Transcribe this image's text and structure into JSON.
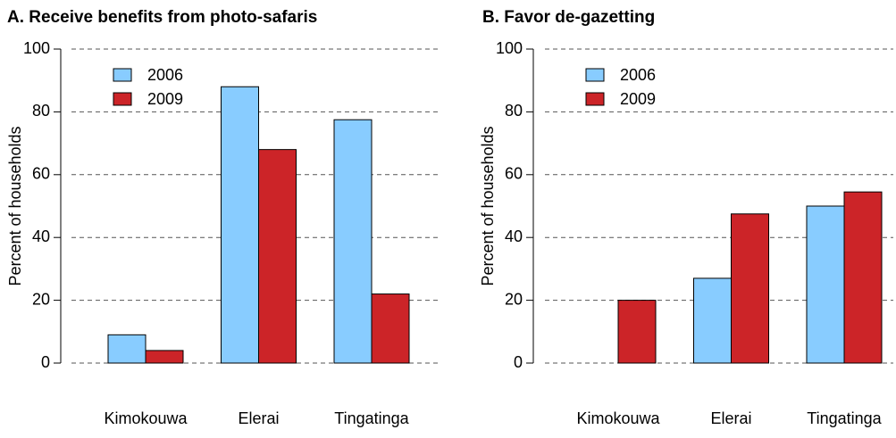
{
  "chart_data": [
    {
      "type": "bar",
      "title": "A. Receive benefits from photo-safaris",
      "y_label": "Percent of households",
      "categories": [
        "Kimokouwa",
        "Elerai",
        "Tingatinga"
      ],
      "series": [
        {
          "name": "2006",
          "color": "#88ccff",
          "values": [
            9,
            88,
            77.5
          ]
        },
        {
          "name": "2009",
          "color": "#cc2428",
          "values": [
            4,
            68,
            22
          ]
        }
      ],
      "ylim": [
        0,
        100
      ],
      "yticks": [
        0,
        20,
        40,
        60,
        80,
        100
      ],
      "grid": true,
      "legend": "upper left"
    },
    {
      "type": "bar",
      "title": "B. Favor de-gazetting",
      "y_label": "Percent of households",
      "categories": [
        "Kimokouwa",
        "Elerai",
        "Tingatinga"
      ],
      "series": [
        {
          "name": "2006",
          "color": "#88ccff",
          "values": [
            0,
            27,
            50
          ]
        },
        {
          "name": "2009",
          "color": "#cc2428",
          "values": [
            20,
            47.5,
            54.5
          ]
        }
      ],
      "ylim": [
        0,
        100
      ],
      "yticks": [
        0,
        20,
        40,
        60,
        80,
        100
      ],
      "grid": true,
      "legend": "upper left"
    }
  ]
}
